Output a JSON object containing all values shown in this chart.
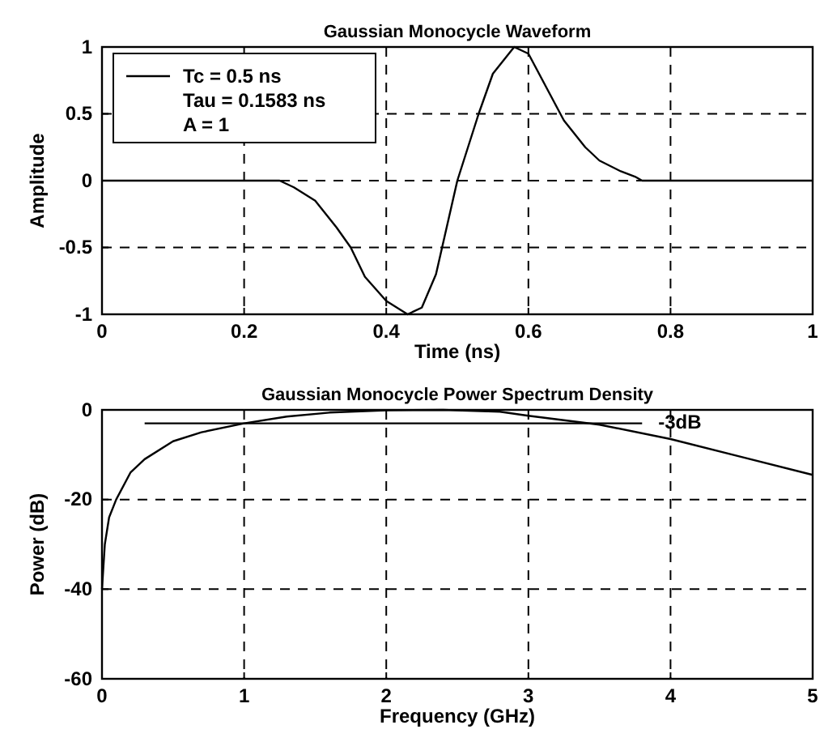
{
  "chart_data": [
    {
      "type": "line",
      "title": "Gaussian Monocycle Waveform",
      "xlabel": "Time (ns)",
      "ylabel": "Amplitude",
      "xlim": [
        0,
        1
      ],
      "xticks": [
        0,
        0.2,
        0.4,
        0.6,
        0.8,
        1
      ],
      "ylim": [
        -1,
        1
      ],
      "yticks": [
        -1,
        -0.5,
        0,
        0.5,
        1
      ],
      "grid": true,
      "legend": "top left",
      "line_style": "solid",
      "x": [
        0,
        0.25,
        0.27,
        0.3,
        0.33,
        0.35,
        0.37,
        0.4,
        0.43,
        0.45,
        0.47,
        0.5,
        0.53,
        0.55,
        0.58,
        0.6,
        0.62,
        0.65,
        0.68,
        0.7,
        0.73,
        0.75,
        0.76,
        1
      ],
      "series": [
        {
          "name": "Tc = 0.5 ns",
          "color": "#000000",
          "values": [
            0,
            0,
            -0.05,
            -0.15,
            -0.35,
            -0.5,
            -0.72,
            -0.9,
            -1,
            -0.95,
            -0.7,
            0,
            0.5,
            0.8,
            1,
            0.95,
            0.75,
            0.45,
            0.25,
            0.15,
            0.07,
            0.03,
            0,
            0
          ]
        }
      ],
      "annotations": [
        "Tau = 0.1583 ns",
        "A = 1"
      ]
    },
    {
      "type": "line",
      "title": "Gaussian Monocycle Power Spectrum Density",
      "xlabel": "Frequency (GHz)",
      "ylabel": "Power (dB)",
      "xlim": [
        0,
        5
      ],
      "xticks": [
        0,
        1,
        2,
        3,
        4,
        5
      ],
      "ylim": [
        -60,
        0
      ],
      "yticks": [
        -60,
        -40,
        -20,
        0
      ],
      "grid": true,
      "line_style": "solid",
      "series": [
        {
          "color": "#000000",
          "x": [
            0,
            0.02,
            0.05,
            0.1,
            0.2,
            0.3,
            0.5,
            0.7,
            1,
            1.3,
            1.6,
            2,
            2.4,
            2.8,
            3,
            3.5,
            4,
            4.5,
            5
          ],
          "values": [
            -40,
            -30,
            -24,
            -20,
            -14,
            -11,
            -7,
            -5,
            -3,
            -1.5,
            -0.6,
            -0.1,
            0,
            -0.4,
            -1.3,
            -3.3,
            -6.5,
            -10.5,
            -14.5
          ]
        },
        {
          "name": "-3dB",
          "color": "#000000",
          "x": [
            0.3,
            3.8
          ],
          "values": [
            -3,
            -3
          ]
        }
      ]
    }
  ]
}
